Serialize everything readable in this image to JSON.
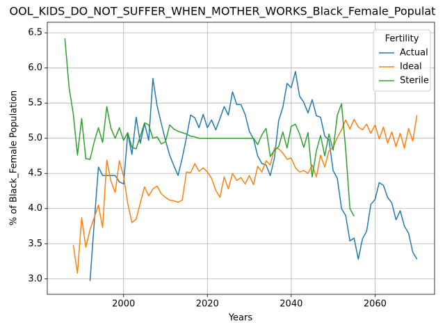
{
  "chart_data": {
    "type": "line",
    "title": "OOL_KIDS_DO_NOT_SUFFER_WHEN_MOTHER_WORKS_Black_Female_Populat",
    "x_label": "Years",
    "y_label": "% of Black_Female Population",
    "legend_title": "Fertility",
    "legend": "upper right",
    "grid": true,
    "x": [
      1986,
      1987,
      1988,
      1989,
      1990,
      1991,
      1992,
      1993,
      1994,
      1995,
      1996,
      1997,
      1998,
      1999,
      2000,
      2001,
      2002,
      2003,
      2004,
      2005,
      2006,
      2007,
      2008,
      2009,
      2010,
      2011,
      2012,
      2013,
      2014,
      2015,
      2016,
      2017,
      2018,
      2019,
      2020,
      2021,
      2022,
      2023,
      2024,
      2025,
      2026,
      2027,
      2028,
      2029,
      2030,
      2031,
      2032,
      2033,
      2034,
      2035,
      2036,
      2037,
      2038,
      2039,
      2040,
      2041,
      2042,
      2043,
      2044,
      2045,
      2046,
      2047,
      2048,
      2049,
      2050,
      2051,
      2052,
      2053,
      2054,
      2055,
      2056,
      2057,
      2058,
      2059,
      2060,
      2061,
      2062,
      2063,
      2064,
      2065,
      2066,
      2067,
      2068,
      2069,
      2070
    ],
    "xlim": [
      1981.8,
      2074.2
    ],
    "xticks": [
      2000,
      2020,
      2040,
      2060
    ],
    "ylim": [
      2.78,
      6.65
    ],
    "yticks": [
      {
        "value": 3,
        "label": "3.0"
      },
      3.5,
      {
        "value": 4,
        "label": "4.0"
      },
      4.5,
      {
        "value": 5,
        "label": "5.0"
      },
      5.5,
      {
        "value": 6,
        "label": "6.0"
      },
      6.5
    ],
    "series": [
      {
        "name": "Actual",
        "color": "#1f77b4",
        "values": [
          null,
          null,
          null,
          null,
          null,
          null,
          2.97,
          3.8,
          4.59,
          4.47,
          4.47,
          4.47,
          4.47,
          4.38,
          4.35,
          5.07,
          4.77,
          5.3,
          4.93,
          5.21,
          4.97,
          5.85,
          5.46,
          5.21,
          4.97,
          4.76,
          4.61,
          4.47,
          4.72,
          5.01,
          5.33,
          5.29,
          5.15,
          5.34,
          5.15,
          5.26,
          5.12,
          5.28,
          5.45,
          5.33,
          5.66,
          5.48,
          5.48,
          5.34,
          5.1,
          4.99,
          4.75,
          4.64,
          4.62,
          4.47,
          4.72,
          5.25,
          5.44,
          5.78,
          5.72,
          5.95,
          5.6,
          5.51,
          5.36,
          5.55,
          5.32,
          5.3,
          5.03,
          4.98,
          4.54,
          4.43,
          4.0,
          3.9,
          3.54,
          3.58,
          3.28,
          3.57,
          3.68,
          4.06,
          4.13,
          4.37,
          4.33,
          4.16,
          4.08,
          3.84,
          3.97,
          3.75,
          3.65,
          3.38,
          3.28
        ]
      },
      {
        "name": "Ideal",
        "color": "#ff7f0e",
        "values": [
          null,
          null,
          3.48,
          3.08,
          3.87,
          3.45,
          3.7,
          3.87,
          4.05,
          3.73,
          4.69,
          4.39,
          4.23,
          4.68,
          4.46,
          4.07,
          3.8,
          3.85,
          4.08,
          4.31,
          4.18,
          4.28,
          4.32,
          4.21,
          4.16,
          4.12,
          4.11,
          4.09,
          4.12,
          4.52,
          4.51,
          4.64,
          4.53,
          4.58,
          4.52,
          4.43,
          4.26,
          4.16,
          4.45,
          4.28,
          4.5,
          4.4,
          4.44,
          4.35,
          4.47,
          4.34,
          4.6,
          4.52,
          4.68,
          4.62,
          4.86,
          4.85,
          4.79,
          4.7,
          4.72,
          4.58,
          4.52,
          4.54,
          4.5,
          4.62,
          4.45,
          4.76,
          4.59,
          4.82,
          4.87,
          5.01,
          5.12,
          5.26,
          5.13,
          5.27,
          5.16,
          5.12,
          5.2,
          5.07,
          5.19,
          4.99,
          5.16,
          4.93,
          5.09,
          4.88,
          5.07,
          4.86,
          5.14,
          4.96,
          5.33
        ]
      },
      {
        "name": "Sterile",
        "color": "#2ca02c",
        "values": [
          6.42,
          5.72,
          5.35,
          4.76,
          5.28,
          4.71,
          4.7,
          4.95,
          5.15,
          4.94,
          5.45,
          5.14,
          5.0,
          5.15,
          4.97,
          5.08,
          4.87,
          4.85,
          5.03,
          5.22,
          5.19,
          5.0,
          5.02,
          4.92,
          4.95,
          5.19,
          5.13,
          5.1,
          5.08,
          5.06,
          5.03,
          5.02,
          5.0,
          5.0,
          5.0,
          5.0,
          5.0,
          5.0,
          5.0,
          5.0,
          5.0,
          5.0,
          5.0,
          5.0,
          5.0,
          5.0,
          4.91,
          5.05,
          5.14,
          4.74,
          4.83,
          4.88,
          5.09,
          4.86,
          5.17,
          5.2,
          5.06,
          4.87,
          5.08,
          4.45,
          4.82,
          5.04,
          4.75,
          5.06,
          4.83,
          5.33,
          5.49,
          4.84,
          4.0,
          3.89,
          null,
          null,
          null,
          null,
          null,
          null,
          null,
          null,
          null,
          null,
          null,
          null,
          null,
          null,
          null
        ]
      }
    ]
  }
}
